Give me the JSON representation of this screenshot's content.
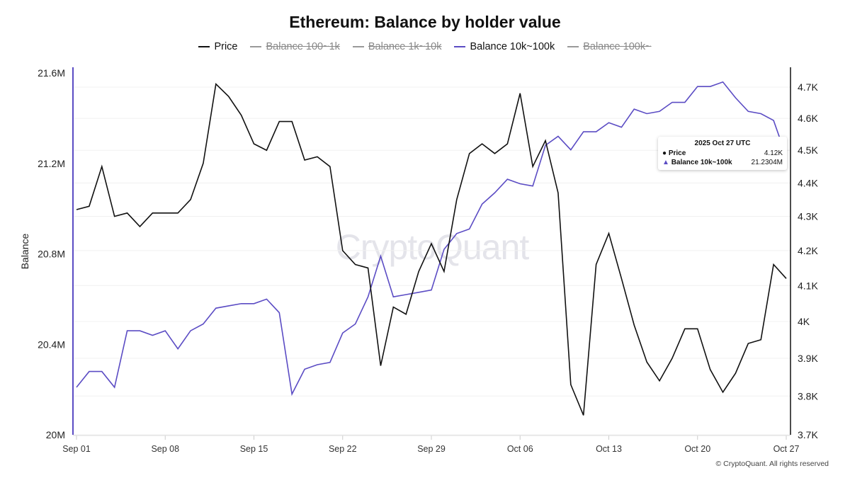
{
  "chart_data": {
    "type": "line",
    "title": "Ethereum: Balance by holder value",
    "legend": [
      {
        "name": "Price",
        "color": "#111111",
        "active": true
      },
      {
        "name": "Balance 100~1k",
        "color": "#999999",
        "active": false
      },
      {
        "name": "Balance 1k~10k",
        "color": "#999999",
        "active": false
      },
      {
        "name": "Balance 10k~100k",
        "color": "#5b4cc4",
        "active": true
      },
      {
        "name": "Balance 100k~",
        "color": "#999999",
        "active": false
      }
    ],
    "legend_position": "top-center",
    "ylabel": "Balance",
    "y_left": {
      "ticks": [
        "20M",
        "20.4M",
        "20.8M",
        "21.2M",
        "21.6M"
      ],
      "tick_values": [
        20,
        20.4,
        20.8,
        21.2,
        21.6
      ],
      "range": [
        20,
        21.6
      ]
    },
    "y_right": {
      "scale": "log",
      "ticks": [
        "3.7K",
        "3.8K",
        "3.9K",
        "4K",
        "4.1K",
        "4.2K",
        "4.3K",
        "4.4K",
        "4.5K",
        "4.6K",
        "4.7K"
      ],
      "tick_values": [
        3.7,
        3.8,
        3.9,
        4.0,
        4.1,
        4.2,
        4.3,
        4.4,
        4.5,
        4.6,
        4.7
      ],
      "range": [
        3.7,
        4.7
      ]
    },
    "x_ticks": [
      {
        "label": "Sep 01",
        "index": 0
      },
      {
        "label": "Sep 08",
        "index": 7
      },
      {
        "label": "Sep 15",
        "index": 14
      },
      {
        "label": "Sep 22",
        "index": 21
      },
      {
        "label": "Sep 29",
        "index": 28
      },
      {
        "label": "Oct 06",
        "index": 35
      },
      {
        "label": "Oct 13",
        "index": 42
      },
      {
        "label": "Oct 20",
        "index": 49
      },
      {
        "label": "Oct 27",
        "index": 56
      }
    ],
    "x_range_days": [
      0,
      56
    ],
    "grid": true,
    "series": [
      {
        "name": "Price",
        "unit": "K USD",
        "axis": "right",
        "values": [
          4.32,
          4.33,
          4.45,
          4.3,
          4.31,
          4.27,
          4.31,
          4.31,
          4.31,
          4.35,
          4.46,
          4.71,
          4.67,
          4.61,
          4.52,
          4.5,
          4.59,
          4.59,
          4.47,
          4.48,
          4.45,
          4.2,
          4.16,
          4.15,
          3.88,
          4.04,
          4.02,
          4.14,
          4.22,
          4.14,
          4.35,
          4.49,
          4.52,
          4.49,
          4.52,
          4.68,
          4.45,
          4.53,
          4.37,
          3.83,
          3.75,
          4.16,
          4.25,
          4.12,
          3.99,
          3.89,
          3.84,
          3.9,
          3.98,
          3.98,
          3.87,
          3.81,
          3.86,
          3.94,
          3.95,
          4.16,
          4.12
        ]
      },
      {
        "name": "Balance 10k~100k",
        "unit": "M",
        "axis": "left",
        "values": [
          20.21,
          20.28,
          20.28,
          20.21,
          20.46,
          20.46,
          20.44,
          20.46,
          20.38,
          20.46,
          20.49,
          20.56,
          20.57,
          20.58,
          20.58,
          20.6,
          20.54,
          20.18,
          20.29,
          20.31,
          20.32,
          20.45,
          20.49,
          20.61,
          20.79,
          20.61,
          20.62,
          20.63,
          20.64,
          20.82,
          20.89,
          20.91,
          21.02,
          21.07,
          21.13,
          21.11,
          21.1,
          21.28,
          21.32,
          21.26,
          21.34,
          21.34,
          21.38,
          21.36,
          21.44,
          21.42,
          21.43,
          21.47,
          21.47,
          21.54,
          21.54,
          21.56,
          21.49,
          21.43,
          21.42,
          21.39,
          21.2304
        ]
      }
    ],
    "tooltip": {
      "date": "2025 Oct 27 UTC",
      "rows": [
        {
          "label": "Price",
          "value": "4.12K"
        },
        {
          "label": "Balance 10k~100k",
          "value": "21.2304M"
        }
      ]
    }
  },
  "watermark": "CryptoQuant",
  "credit": "© CryptoQuant. All rights reserved"
}
